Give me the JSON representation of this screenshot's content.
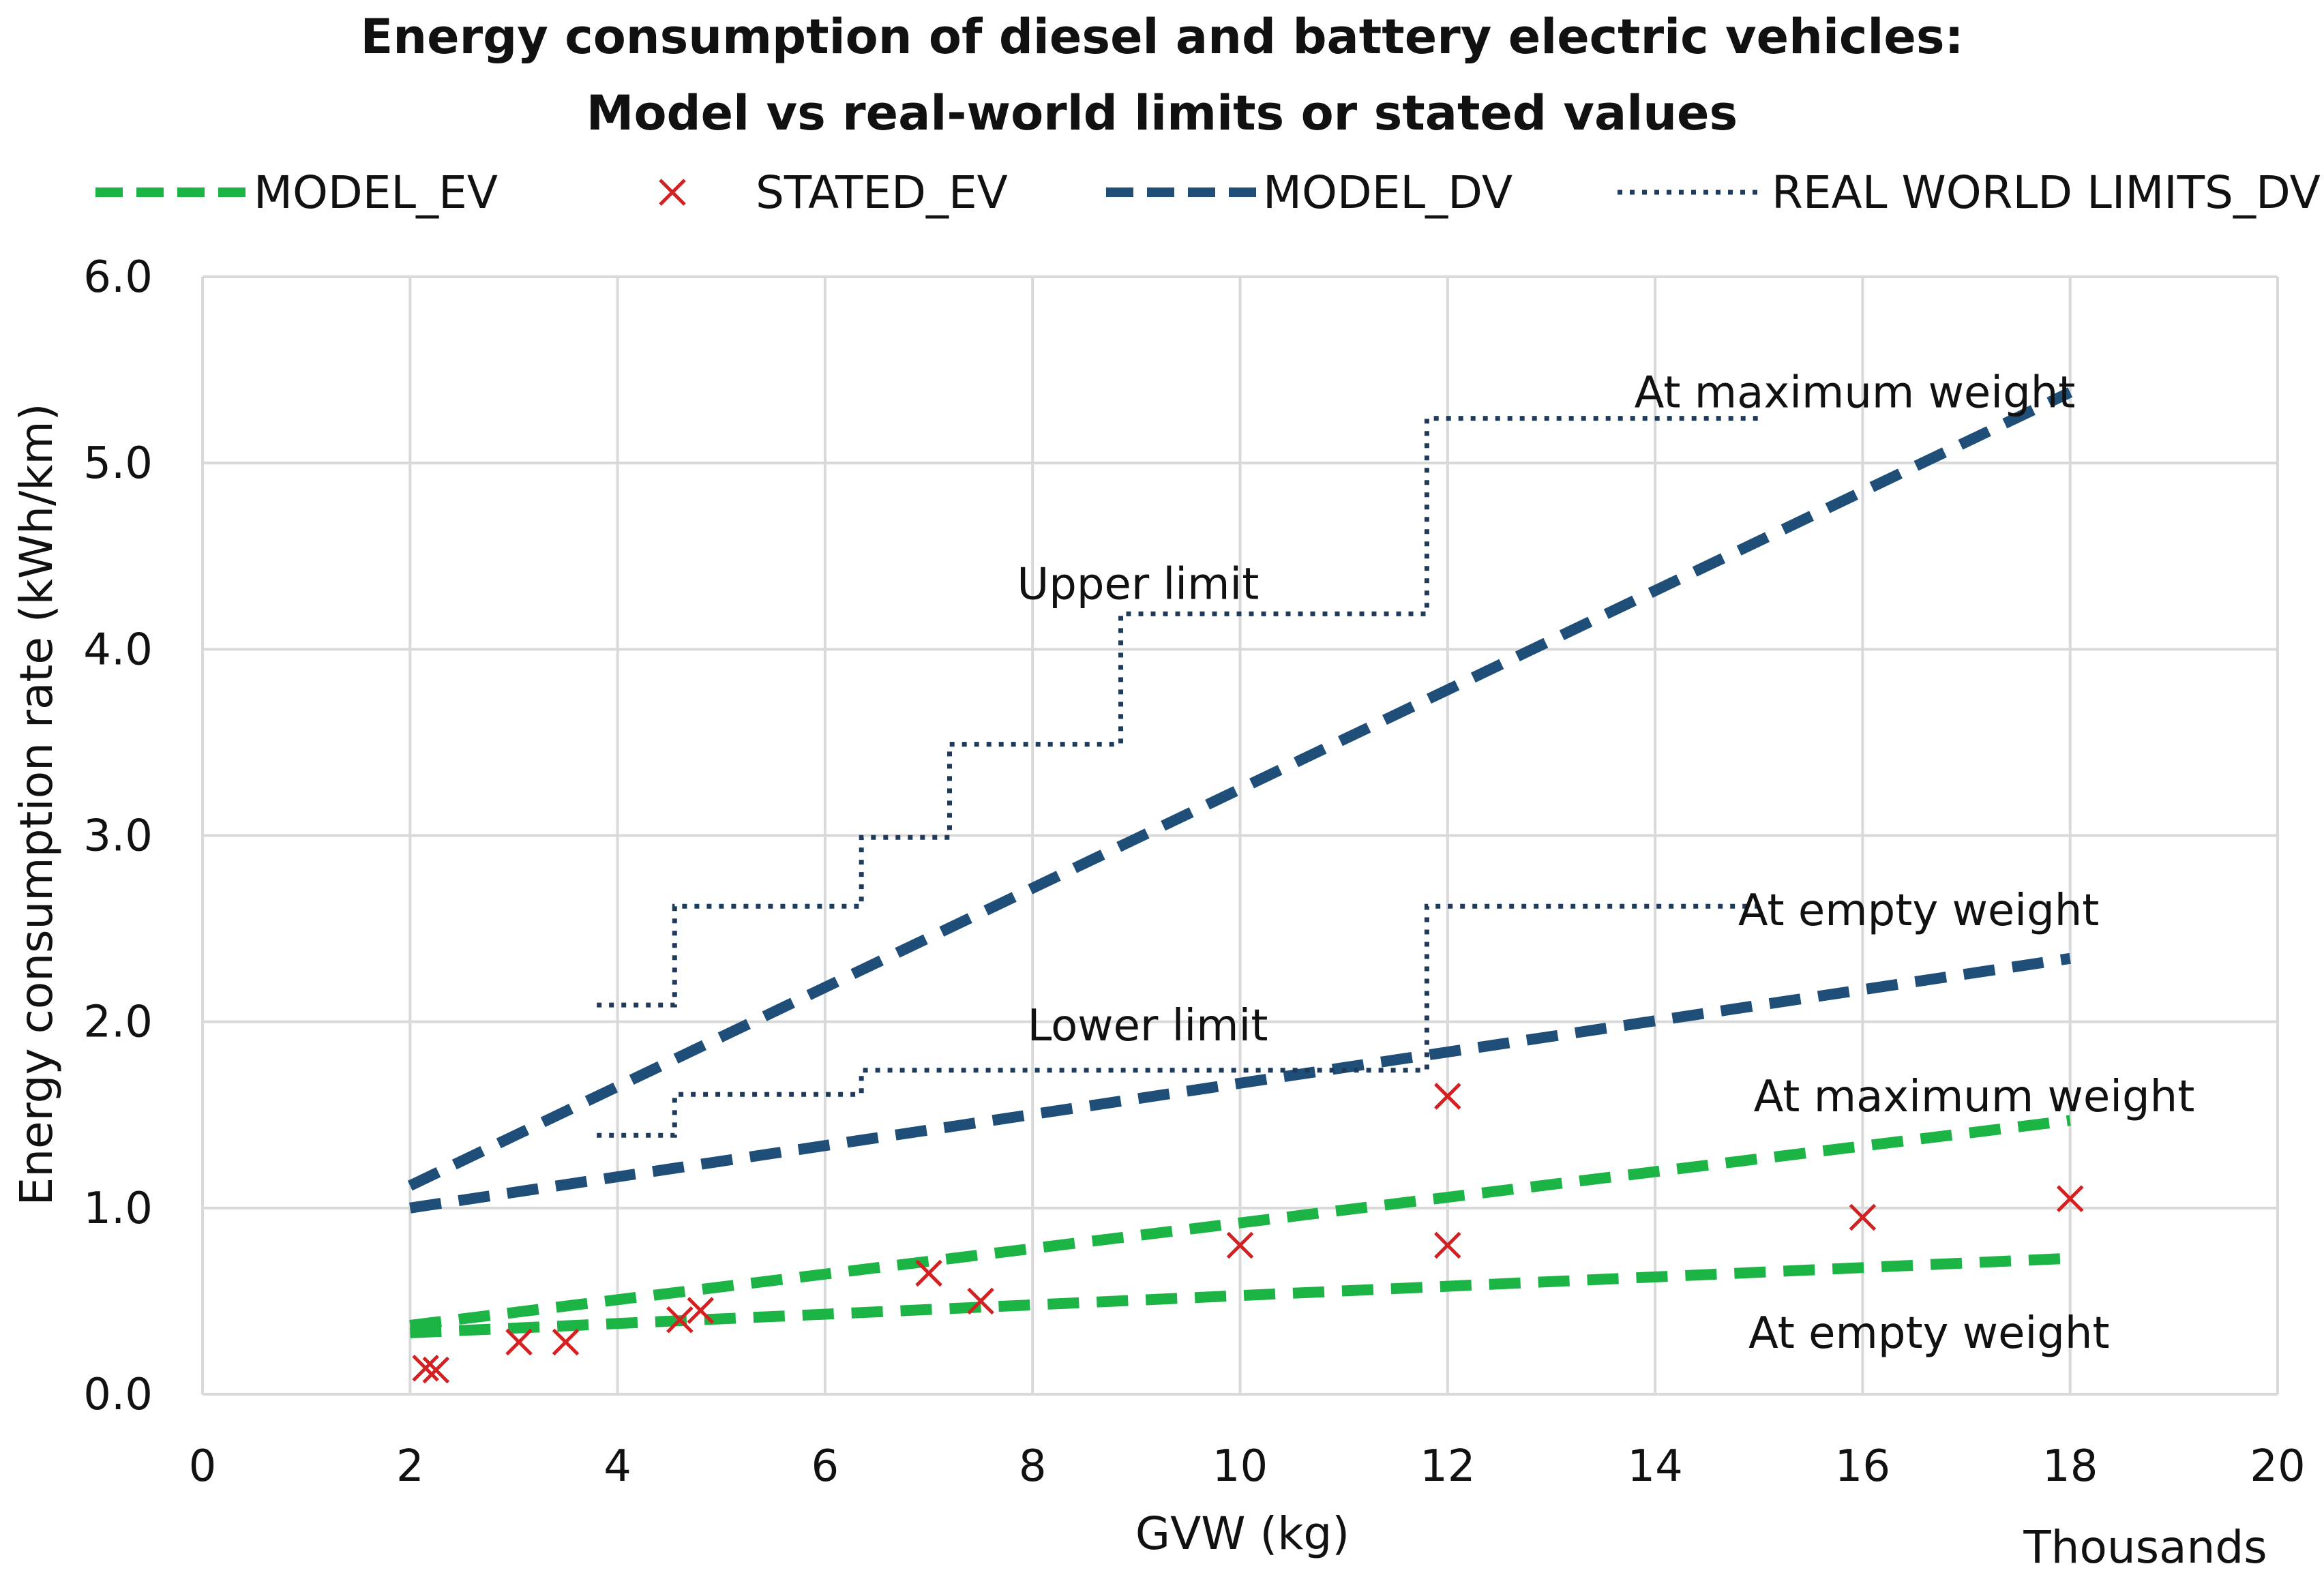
{
  "chart_data": {
    "type": "line",
    "title": "Energy consumption of diesel and battery electric vehicles:",
    "subtitle": "Model vs real-world limits or stated values",
    "xlabel": "GVW (kg)",
    "x_unit_label": "Thousands",
    "ylabel": "Energy consumption rate (kWh/km)",
    "xlim": [
      0,
      20
    ],
    "ylim": [
      0,
      6
    ],
    "x_ticks": [
      0,
      2,
      4,
      6,
      8,
      10,
      12,
      14,
      16,
      18,
      20
    ],
    "y_ticks": [
      0,
      1,
      2,
      3,
      4,
      5,
      6
    ],
    "x_tick_labels": [
      "0",
      "2",
      "4",
      "6",
      "8",
      "10",
      "12",
      "14",
      "16",
      "18",
      "20"
    ],
    "y_tick_labels": [
      "0.0",
      "1.0",
      "2.0",
      "3.0",
      "4.0",
      "5.0",
      "6.0"
    ],
    "grid": true,
    "legend": [
      {
        "label": "MODEL_EV",
        "style": "dashed",
        "color": "#1DB446"
      },
      {
        "label": "STATED_EV",
        "style": "marker-x",
        "color": "#D42020"
      },
      {
        "label": "MODEL_DV",
        "style": "dashed",
        "color": "#1F4E79"
      },
      {
        "label": "REAL WORLD LIMITS_DV",
        "style": "dotted",
        "color": "#1F3B5C"
      }
    ],
    "series": [
      {
        "name": "MODEL_DV At maximum weight",
        "legend": "MODEL_DV",
        "style": "dashed",
        "color": "#1F4E79",
        "x": [
          2,
          18
        ],
        "y": [
          1.12,
          5.38
        ]
      },
      {
        "name": "MODEL_DV At empty weight",
        "legend": "MODEL_DV",
        "style": "dashed",
        "color": "#1F4E79",
        "x": [
          2,
          18
        ],
        "y": [
          1.0,
          2.34
        ]
      },
      {
        "name": "MODEL_EV At maximum weight",
        "legend": "MODEL_EV",
        "style": "dashed",
        "color": "#1DB446",
        "x": [
          2,
          18
        ],
        "y": [
          0.37,
          1.47
        ]
      },
      {
        "name": "MODEL_EV At empty weight",
        "legend": "MODEL_EV",
        "style": "dashed",
        "color": "#1DB446",
        "x": [
          2,
          18
        ],
        "y": [
          0.33,
          0.73
        ]
      },
      {
        "name": "REAL WORLD LIMITS_DV Upper limit",
        "legend": "REAL WORLD LIMITS_DV",
        "style": "dotted",
        "color": "#1F3B5C",
        "x": [
          3.8,
          4.55,
          4.55,
          6.35,
          6.35,
          7.2,
          7.2,
          8.85,
          8.85,
          11.8,
          11.8,
          15.0
        ],
        "y": [
          2.09,
          2.09,
          2.62,
          2.62,
          2.99,
          2.99,
          3.49,
          3.49,
          4.19,
          4.19,
          5.24,
          5.24
        ]
      },
      {
        "name": "REAL WORLD LIMITS_DV Lower limit",
        "legend": "REAL WORLD LIMITS_DV",
        "style": "dotted",
        "color": "#1F3B5C",
        "x": [
          3.8,
          4.55,
          4.55,
          6.35,
          6.35,
          11.8,
          11.8,
          15.0
        ],
        "y": [
          1.39,
          1.39,
          1.61,
          1.61,
          1.74,
          1.74,
          2.62,
          2.62
        ]
      },
      {
        "name": "STATED_EV",
        "legend": "STATED_EV",
        "style": "marker-x",
        "color": "#D42020",
        "points": [
          {
            "x": 2.15,
            "y": 0.14
          },
          {
            "x": 2.25,
            "y": 0.13
          },
          {
            "x": 3.05,
            "y": 0.28
          },
          {
            "x": 3.5,
            "y": 0.28
          },
          {
            "x": 4.6,
            "y": 0.4
          },
          {
            "x": 4.8,
            "y": 0.45
          },
          {
            "x": 7.0,
            "y": 0.65
          },
          {
            "x": 7.5,
            "y": 0.5
          },
          {
            "x": 10.0,
            "y": 0.8
          },
          {
            "x": 12.0,
            "y": 1.6
          },
          {
            "x": 12.0,
            "y": 0.8
          },
          {
            "x": 16.0,
            "y": 0.95
          },
          {
            "x": 18.0,
            "y": 1.05
          }
        ]
      }
    ],
    "annotations": [
      {
        "text": "At maximum weight",
        "x": 13.8,
        "y": 5.38
      },
      {
        "text": "Upper limit",
        "x": 7.85,
        "y": 4.35
      },
      {
        "text": "At empty weight",
        "x": 14.8,
        "y": 2.6
      },
      {
        "text": "Lower limit",
        "x": 7.95,
        "y": 1.98
      },
      {
        "text": "At maximum weight",
        "x": 14.95,
        "y": 1.6
      },
      {
        "text": "At empty weight",
        "x": 14.9,
        "y": 0.33
      }
    ]
  }
}
